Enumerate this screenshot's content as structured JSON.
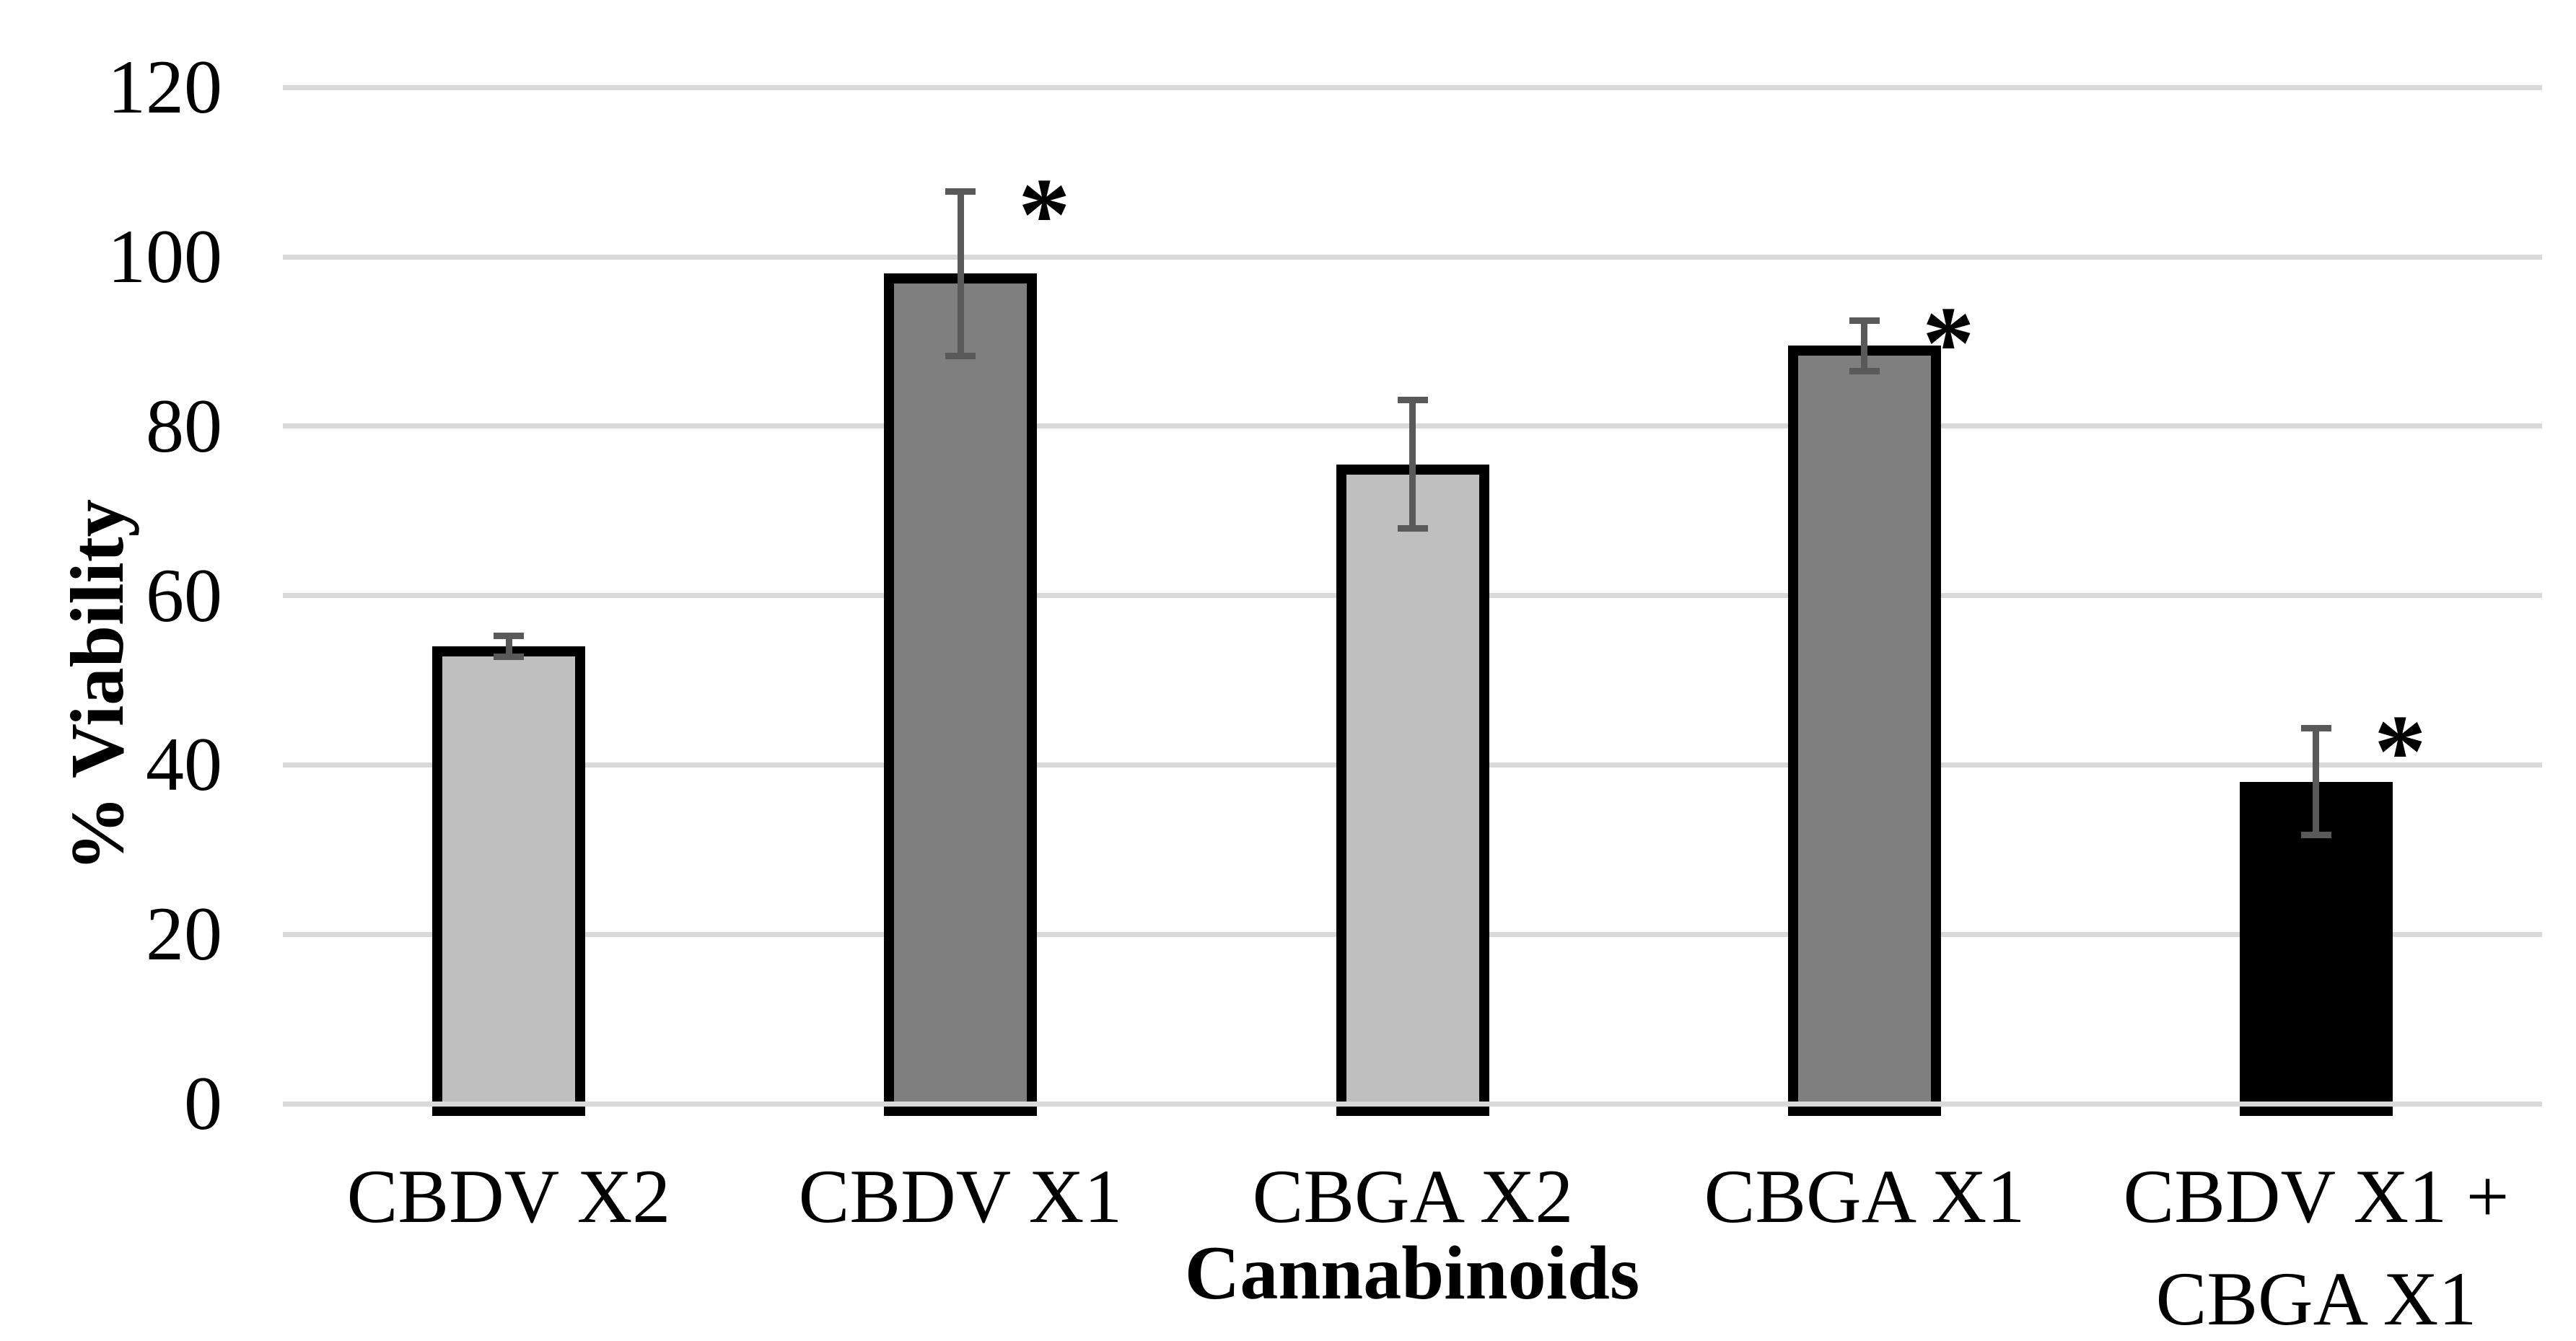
{
  "page": {
    "background": "#ffffff"
  },
  "chart_data": {
    "type": "bar",
    "title": "",
    "xlabel": "Cannabinoids",
    "ylabel": "% Viability",
    "categories": [
      "CBDV X2",
      "CBDV X1",
      "CBGA X2",
      "CBGA X1",
      "CBDV X1 + CBGA X1"
    ],
    "values": [
      54,
      98,
      75.5,
      89.5,
      38
    ],
    "error_bars": [
      1.2,
      9.7,
      7.6,
      3,
      6.3
    ],
    "significant": [
      false,
      true,
      false,
      true,
      true
    ],
    "significance_marker": "*",
    "yticks": [
      0,
      20,
      40,
      60,
      80,
      100,
      120
    ],
    "ylim": [
      0,
      120
    ],
    "grid": "horizontal-only",
    "legend": "none",
    "bar_colors": [
      "#bfbfbf",
      "#7f7f7f",
      "#bfbfbf",
      "#7f7f7f",
      "#000000"
    ],
    "bar_outline_color": "#000000",
    "error_bar_color": "#595959",
    "gridline_color": "#d9d9d9",
    "text_color": "#000000"
  }
}
